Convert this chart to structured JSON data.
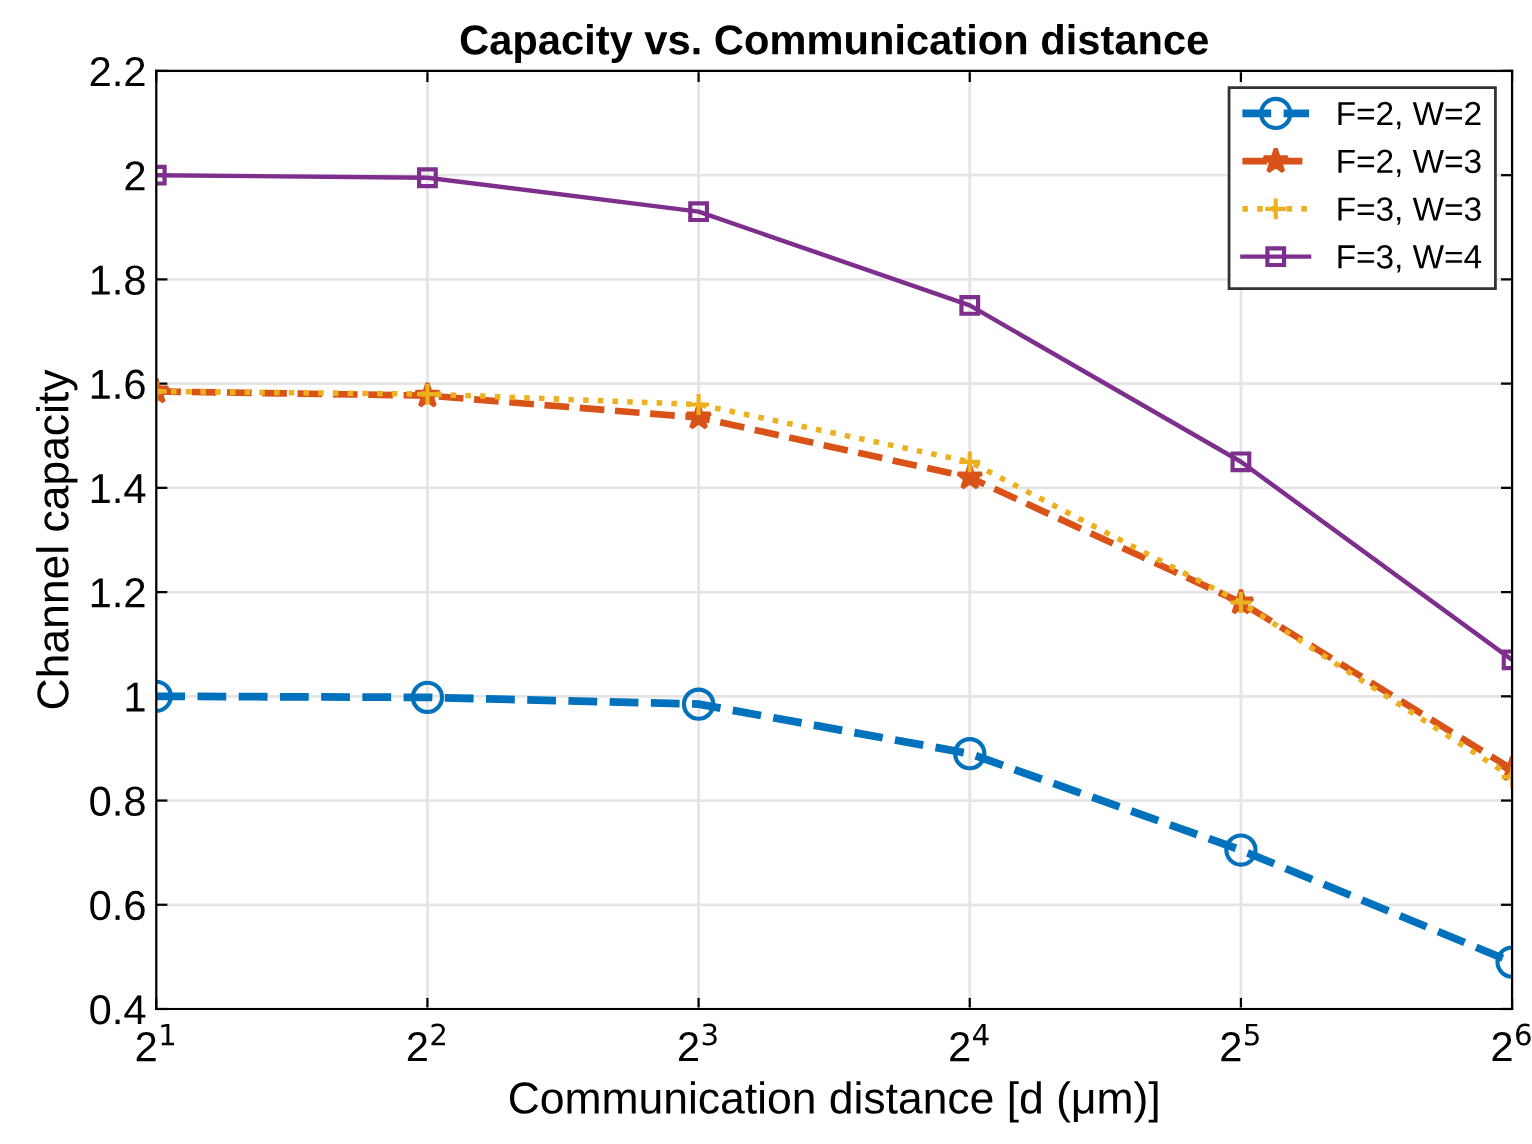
{
  "chart_data": {
    "type": "line",
    "title": "Capacity vs. Communication distance",
    "xlabel": "Communication distance [d (μm)]",
    "ylabel": "Channel capacity",
    "x": [
      2,
      4,
      8,
      16,
      32,
      64
    ],
    "log": "x",
    "xlim": [
      2,
      64
    ],
    "xticks": [
      {
        "value": 2,
        "label": "2$^{1}$"
      },
      {
        "value": 4,
        "label": "2$^{2}$"
      },
      {
        "value": 8,
        "label": "2$^{3}$"
      },
      {
        "value": 16,
        "label": "2$^{4}$"
      },
      {
        "value": 32,
        "label": "2$^{5}$"
      },
      {
        "value": 64,
        "label": "2$^{6}$"
      }
    ],
    "ylim": [
      0.4,
      2.2
    ],
    "yticks": [
      0.4,
      0.6,
      0.8,
      1,
      1.2,
      1.4,
      1.6,
      1.8,
      2,
      2.2
    ],
    "grid": true,
    "legend": "top right",
    "series": [
      {
        "name": "F=2, W=2",
        "color": "#0072bd",
        "marker": "circle",
        "line_style": "dashed",
        "values": [
          1.0,
          0.998,
          0.985,
          0.89,
          0.705,
          0.49
        ]
      },
      {
        "name": "F=2, W=3",
        "color": "#d95319",
        "marker": "star",
        "line_style": "dashed",
        "values": [
          1.585,
          1.577,
          1.535,
          1.42,
          1.18,
          0.86
        ]
      },
      {
        "name": "F=3, W=3",
        "color": "#edb120",
        "marker": "cross",
        "line_style": "dotted",
        "values": [
          1.585,
          1.58,
          1.56,
          1.45,
          1.18,
          0.845
        ]
      },
      {
        "name": "F=3, W=4",
        "color": "#7e2f8e",
        "marker": "square",
        "line_style": "solid",
        "values": [
          2.0,
          1.995,
          1.93,
          1.75,
          1.45,
          1.07
        ]
      }
    ]
  }
}
